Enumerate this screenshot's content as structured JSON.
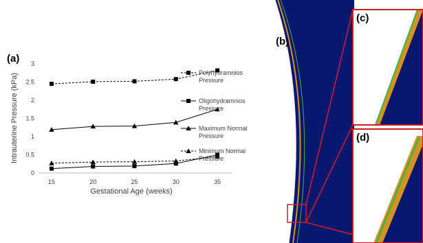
{
  "panels": {
    "a": "(a)",
    "b": "(b)",
    "c": "(c)",
    "d": "(d)"
  },
  "chart_data": {
    "type": "line",
    "xlabel": "Gestational Age (weeks)",
    "ylabel": "Intrauterine Pressure (kPa)",
    "x": [
      15,
      20,
      25,
      30,
      35
    ],
    "xlim": [
      15,
      35
    ],
    "ylim": [
      0,
      3
    ],
    "yticks": [
      "0",
      "0.5",
      "1",
      "1.5",
      "2",
      "2.5",
      "3"
    ],
    "xticks": [
      "15",
      "20",
      "25",
      "30",
      "35"
    ],
    "grid": false,
    "legend_position": "right",
    "series": [
      {
        "name": "Polyhydramnios Pressure",
        "name_lines": [
          "Polyhydramnios",
          "Pressure"
        ],
        "values": [
          2.45,
          2.51,
          2.52,
          2.58,
          2.82
        ],
        "marker": "square",
        "dash": true
      },
      {
        "name": "Oligohydramnios Pressure",
        "name_lines": [
          "Oligohydramnios",
          "Pressure"
        ],
        "values": [
          0.12,
          0.18,
          0.19,
          0.26,
          0.5
        ],
        "marker": "square",
        "dash": false
      },
      {
        "name": "Maximum Normal Pressure",
        "name_lines": [
          "Maximum Normal",
          "Pressure"
        ],
        "values": [
          1.19,
          1.28,
          1.29,
          1.39,
          1.75
        ],
        "marker": "triangle",
        "dash": false
      },
      {
        "name": "Minimum Normal Pressure",
        "name_lines": [
          "Minimum Normal",
          "Pressure"
        ],
        "values": [
          0.27,
          0.3,
          0.31,
          0.33,
          0.45
        ],
        "marker": "triangle",
        "dash": true
      }
    ]
  },
  "colors": {
    "navy": "#0a1770",
    "orange": "#d6921e",
    "green": "#3cb54a",
    "red": "#cc1f25",
    "ink": "#000000"
  }
}
